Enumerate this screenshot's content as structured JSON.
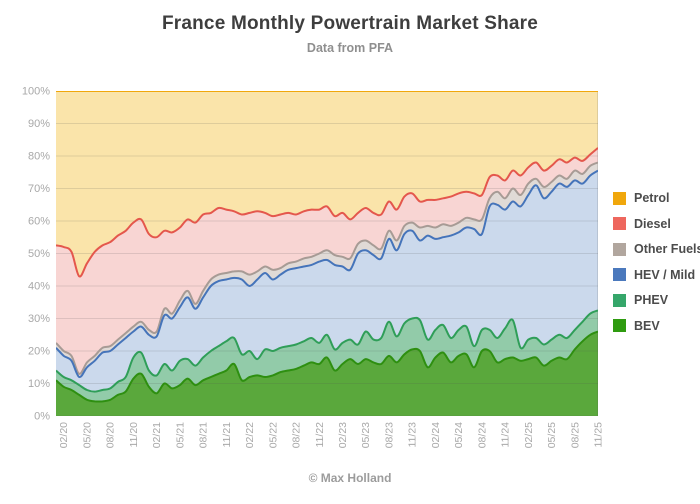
{
  "header": {
    "title": "France Monthly Powertrain Market Share",
    "subtitle": "Data from PFA"
  },
  "footer": {
    "credit": "© Max Holland"
  },
  "legend_items": [
    {
      "label": "Petrol",
      "swatch": "#F0A70C"
    },
    {
      "label": "Diesel",
      "swatch": "#EE675E"
    },
    {
      "label": "Other Fuels",
      "swatch": "#B1A69E"
    },
    {
      "label": "HEV / Mild",
      "swatch": "#4B79BD"
    },
    {
      "label": "PHEV",
      "swatch": "#35A66A"
    },
    {
      "label": "BEV",
      "swatch": "#2F9B10"
    }
  ],
  "chart_data": {
    "type": "area",
    "stacked": true,
    "unit": "%",
    "title": "France Monthly Powertrain Market Share",
    "subtitle": "Data from PFA",
    "ylim": [
      0,
      100
    ],
    "ystep": 10,
    "yticks": [
      "0%",
      "10%",
      "20%",
      "30%",
      "40%",
      "50%",
      "60%",
      "70%",
      "80%",
      "90%",
      "100%"
    ],
    "grid": "horizontal",
    "legend_position": "right",
    "tick_every_months": 3,
    "first_tick_index": 1,
    "x": [
      "01/20",
      "02/20",
      "03/20",
      "04/20",
      "05/20",
      "06/20",
      "07/20",
      "08/20",
      "09/20",
      "10/20",
      "11/20",
      "12/20",
      "01/21",
      "02/21",
      "03/21",
      "04/21",
      "05/21",
      "06/21",
      "07/21",
      "08/21",
      "09/21",
      "10/21",
      "11/21",
      "12/21",
      "01/22",
      "02/22",
      "03/22",
      "04/22",
      "05/22",
      "06/22",
      "07/22",
      "08/22",
      "09/22",
      "10/22",
      "11/22",
      "12/22",
      "01/23",
      "02/23",
      "03/23",
      "04/23",
      "05/23",
      "06/23",
      "07/23",
      "08/23",
      "09/23",
      "10/23",
      "11/23",
      "12/23",
      "01/24",
      "02/24",
      "03/24",
      "04/24",
      "05/24",
      "06/24",
      "07/24",
      "08/24",
      "09/24",
      "10/24",
      "11/24",
      "12/24",
      "01/25",
      "02/25",
      "03/25",
      "04/25",
      "05/25",
      "06/25",
      "07/25",
      "08/25",
      "09/25",
      "10/25",
      "11/25"
    ],
    "series": [
      {
        "name": "BEV",
        "stroke": "#2E8F10",
        "fill": "#5AA83C",
        "values": [
          11,
          9,
          8,
          6.5,
          5,
          4.5,
          4.5,
          5,
          6.5,
          7.5,
          11.5,
          13,
          9,
          7,
          10,
          8.5,
          9.5,
          11.5,
          9.5,
          11,
          12,
          13,
          14,
          16,
          11,
          12,
          12.5,
          12,
          12.5,
          13.5,
          14,
          14.5,
          15.5,
          16.5,
          16,
          18,
          14,
          16,
          17.5,
          16,
          17.5,
          16.5,
          16,
          18.5,
          16.5,
          19,
          20.5,
          20,
          15,
          18,
          19.5,
          16.5,
          18.5,
          19,
          15,
          20,
          20,
          16.5,
          17.5,
          18,
          17,
          17.5,
          18,
          15.5,
          17,
          18,
          17.5,
          20.5,
          23,
          25,
          26
        ]
      },
      {
        "name": "PHEV",
        "stroke": "#2F9E58",
        "fill": "#92CBA9",
        "values": [
          3,
          3,
          3,
          3,
          3,
          3,
          3.5,
          3.5,
          4,
          4.5,
          6.5,
          6.5,
          5,
          5.5,
          6,
          5.5,
          7.5,
          6,
          6,
          7,
          8,
          8.5,
          9,
          8,
          8,
          8,
          5,
          8.5,
          7.5,
          7.5,
          7.5,
          7.5,
          7.5,
          7.5,
          6.5,
          7,
          6.5,
          6.5,
          6,
          6,
          8.5,
          7,
          8,
          10.5,
          8,
          9.5,
          9.5,
          9.5,
          8.5,
          8.5,
          8.5,
          7.5,
          8,
          8.5,
          6.5,
          6.5,
          6.5,
          7.5,
          9.5,
          11.5,
          4,
          6,
          6,
          6.5,
          6.5,
          7,
          6.5,
          6,
          6,
          6.5,
          6.5
        ]
      },
      {
        "name": "HEV / Mild",
        "stroke": "#4574BA",
        "fill": "#CBD9EC",
        "values": [
          7,
          6.5,
          6,
          2.5,
          7,
          9.5,
          11.5,
          11.5,
          11.5,
          12,
          8,
          8,
          11,
          12,
          15,
          16,
          16.5,
          19,
          17.5,
          18.5,
          20,
          20,
          19,
          18.5,
          23,
          20,
          24.5,
          23.5,
          22,
          22.5,
          23.5,
          23.5,
          23,
          22.5,
          25,
          23,
          26,
          23.5,
          21.5,
          28,
          25,
          26,
          24.5,
          25.5,
          26.5,
          27.5,
          27,
          24.5,
          32,
          28,
          27,
          31.5,
          30,
          30.5,
          36,
          29.5,
          38,
          41,
          36.5,
          36.5,
          43.5,
          44.5,
          47,
          45,
          45.5,
          46.5,
          46.5,
          46,
          42.5,
          42.5,
          43
        ]
      },
      {
        "name": "Other Fuels",
        "stroke": "#A79B95",
        "fill": "#E0DAD6",
        "values": [
          1.5,
          1.5,
          1.5,
          1,
          1.5,
          1.5,
          1.5,
          1.5,
          1.5,
          1.5,
          1.5,
          1.5,
          1.5,
          1.5,
          2,
          1.5,
          2,
          2,
          1.5,
          2,
          2,
          2,
          2,
          2,
          2.5,
          3.5,
          2.5,
          2,
          3,
          2,
          2,
          2,
          2.5,
          2.5,
          2.5,
          3,
          3,
          3,
          3.5,
          3,
          3,
          3,
          3,
          2.5,
          3,
          2.5,
          2.5,
          4,
          3,
          3.5,
          4,
          3,
          3,
          3,
          3,
          4.5,
          2.5,
          4,
          3.5,
          4,
          3.5,
          3.5,
          2,
          3.5,
          3,
          2.5,
          2.5,
          3,
          3,
          3,
          2.5
        ]
      },
      {
        "name": "Diesel",
        "stroke": "#E4574C",
        "fill": "#F8D5D3",
        "values": [
          30,
          32,
          32,
          30,
          30.5,
          32,
          31.5,
          32,
          32,
          31.5,
          32,
          31.5,
          29.5,
          29,
          24,
          25,
          22.5,
          22,
          25,
          23.5,
          20.5,
          20.5,
          19.5,
          18.5,
          17.5,
          19,
          18.5,
          16.5,
          16.5,
          16.5,
          15.5,
          14.5,
          14.5,
          14.5,
          13.5,
          13.5,
          12,
          13.5,
          12,
          9.5,
          10,
          10,
          10.5,
          9,
          9.5,
          9,
          9,
          8,
          8,
          8.5,
          8,
          9,
          9,
          8,
          8,
          7.5,
          6.5,
          5,
          5.5,
          5.5,
          6,
          5,
          5,
          5,
          5,
          5,
          5,
          4,
          4,
          3.5,
          4.5
        ]
      },
      {
        "name": "Petrol",
        "stroke": "#F0A70C",
        "fill": "#FAE4AA",
        "values": [
          47.5,
          48,
          49.5,
          57,
          53,
          49.5,
          47.5,
          46.5,
          44.5,
          43,
          40.5,
          39.5,
          44,
          45,
          43,
          43.5,
          42,
          39.5,
          40.5,
          38,
          37.5,
          36,
          36.5,
          37,
          38,
          37.5,
          37,
          37.5,
          38.5,
          38,
          37.5,
          38,
          37,
          36.5,
          36.5,
          35.5,
          38.5,
          37.5,
          39.5,
          37.5,
          36,
          37.5,
          38,
          34,
          36.5,
          32.5,
          31.5,
          34,
          33.5,
          33.5,
          33,
          32.5,
          31.5,
          31,
          31.5,
          32,
          26.5,
          26,
          27.5,
          24.5,
          26,
          23.5,
          22,
          24.5,
          23,
          21,
          22,
          20.5,
          21.5,
          19.5,
          17.5
        ]
      }
    ]
  }
}
